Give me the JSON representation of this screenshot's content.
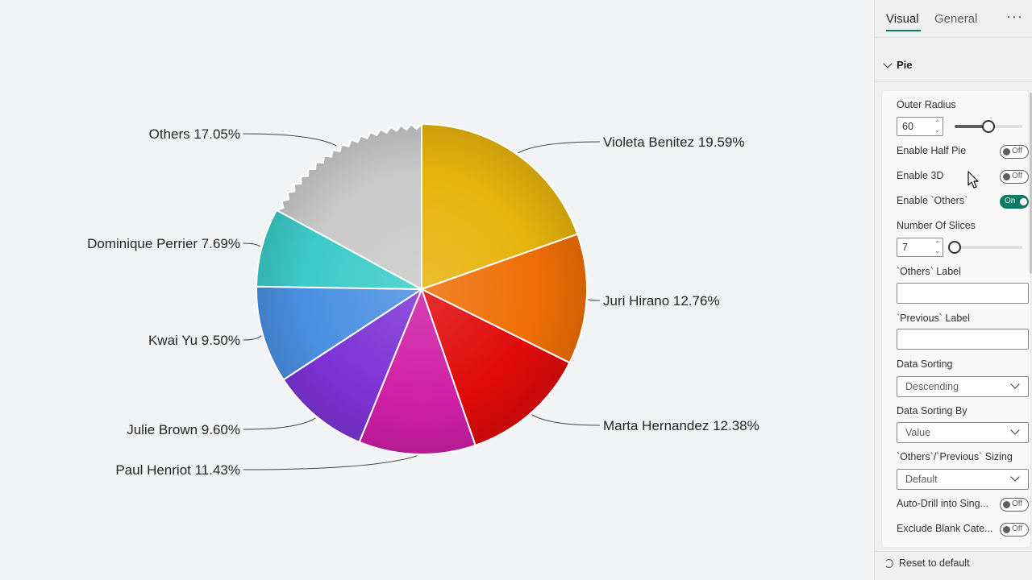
{
  "chart_data": {
    "type": "pie",
    "slices": [
      {
        "label": "Violeta Benitez",
        "percent": 19.59,
        "text": "Violeta Benitez 19.59%",
        "color": "#e6b40c"
      },
      {
        "label": "Juri Hirano",
        "percent": 12.76,
        "text": "Juri Hirano 12.76%",
        "color": "#ef6e05"
      },
      {
        "label": "Marta Hernandez",
        "percent": 12.38,
        "text": "Marta Hernandez 12.38%",
        "color": "#e00a0a"
      },
      {
        "label": "Paul Henriot",
        "percent": 11.43,
        "text": "Paul Henriot 11.43%",
        "color": "#cf1fa6"
      },
      {
        "label": "Julie Brown",
        "percent": 9.6,
        "text": "Julie Brown 9.60%",
        "color": "#7d33d6"
      },
      {
        "label": "Kwai Yu",
        "percent": 9.5,
        "text": "Kwai Yu 9.50%",
        "color": "#4a90e2"
      },
      {
        "label": "Dominique Perrier",
        "percent": 7.69,
        "text": "Dominique Perrier 7.69%",
        "color": "#3ccbc8"
      },
      {
        "label": "Others",
        "percent": 17.05,
        "text": "Others 17.05%",
        "color": "#c9c9c9"
      }
    ]
  },
  "pane": {
    "tabs": {
      "visual": "Visual",
      "general": "General"
    },
    "more": "···",
    "section": "Pie",
    "outer_radius": {
      "label": "Outer Radius",
      "value": "60",
      "slider_fraction": 0.5
    },
    "enable_half_pie": {
      "label": "Enable Half Pie",
      "state": "Off"
    },
    "enable_3d": {
      "label": "Enable 3D",
      "state": "Off"
    },
    "enable_others": {
      "label": "Enable `Others`",
      "state": "On"
    },
    "number_of_slices": {
      "label": "Number Of Slices",
      "value": "7",
      "slider_fraction": 0.0
    },
    "others_label": {
      "label": "`Others` Label",
      "value": ""
    },
    "previous_label": {
      "label": "`Previous` Label",
      "value": ""
    },
    "data_sorting": {
      "label": "Data Sorting",
      "value": "Descending"
    },
    "data_sorting_by": {
      "label": "Data Sorting By",
      "value": "Value"
    },
    "sizing": {
      "label": "`Others`/`Previous` Sizing",
      "value": "Default"
    },
    "auto_drill": {
      "label": "Auto-Drill into Sing...",
      "state": "Off"
    },
    "exclude_blank": {
      "label": "Exclude Blank Cate...",
      "state": "Off"
    },
    "reset": "Reset to default"
  }
}
